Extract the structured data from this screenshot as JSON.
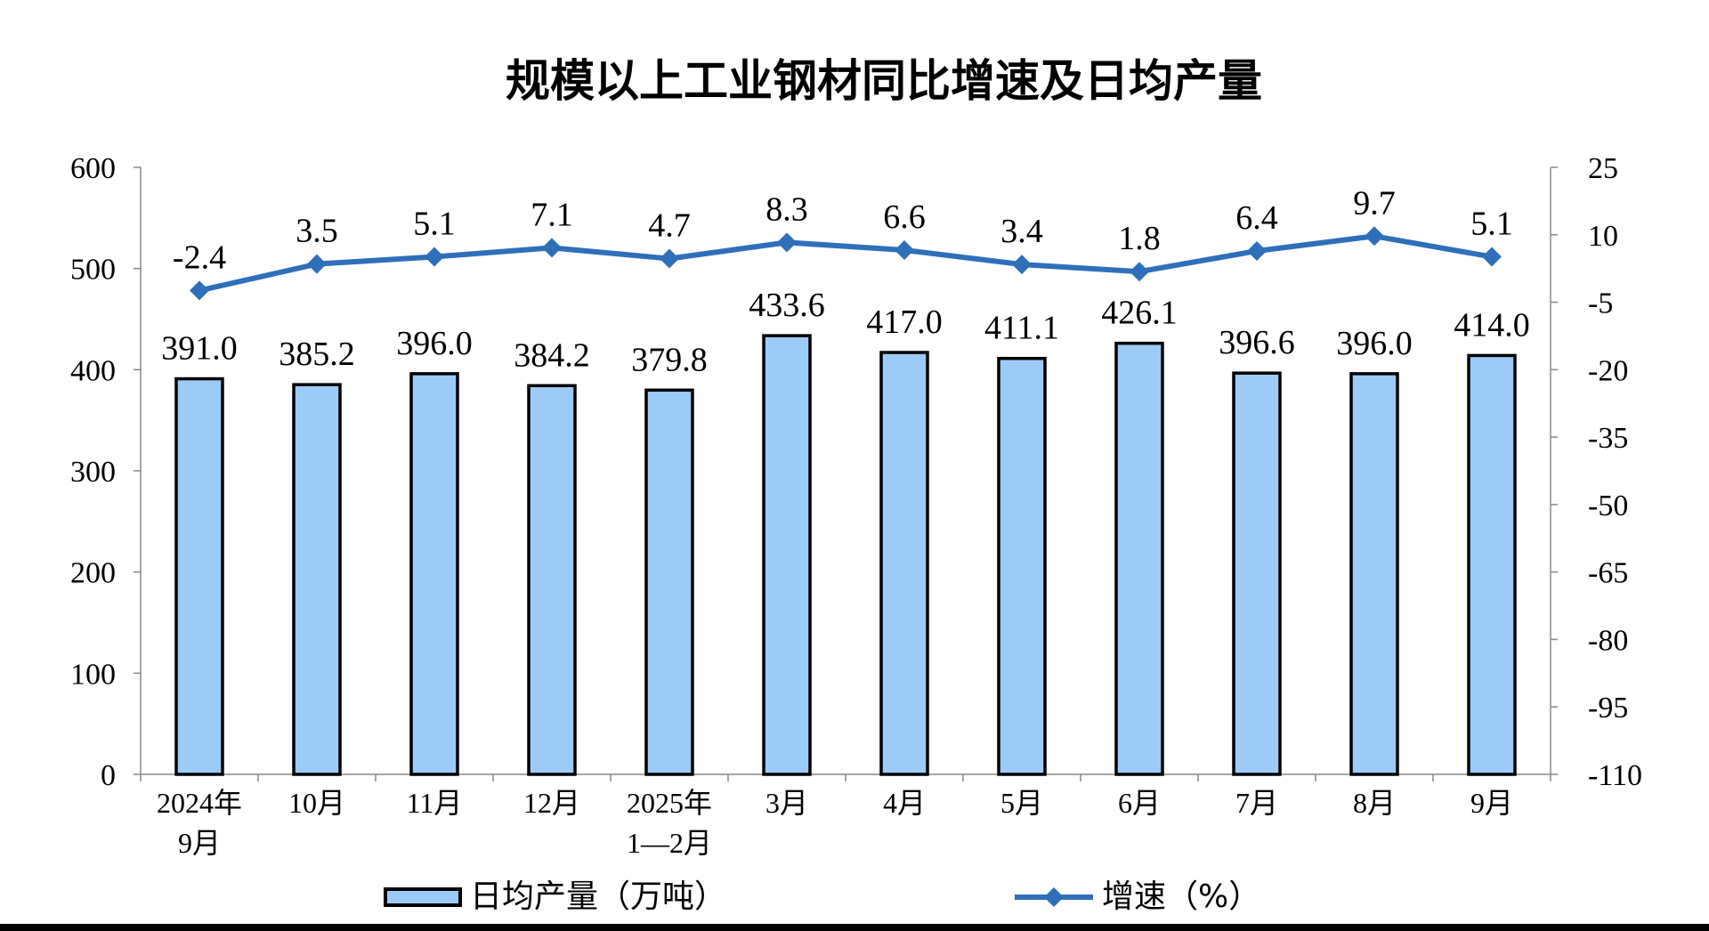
{
  "chart_data": {
    "type": "bar",
    "title": "规模以上工业钢材同比增速及日均产量",
    "categories": [
      {
        "line1": "2024年",
        "line2": "9月"
      },
      {
        "line1": "10月",
        "line2": ""
      },
      {
        "line1": "11月",
        "line2": ""
      },
      {
        "line1": "12月",
        "line2": ""
      },
      {
        "line1": "2025年",
        "line2": "1—2月"
      },
      {
        "line1": "3月",
        "line2": ""
      },
      {
        "line1": "4月",
        "line2": ""
      },
      {
        "line1": "5月",
        "line2": ""
      },
      {
        "line1": "6月",
        "line2": ""
      },
      {
        "line1": "7月",
        "line2": ""
      },
      {
        "line1": "8月",
        "line2": ""
      },
      {
        "line1": "9月",
        "line2": ""
      }
    ],
    "series": [
      {
        "name": "日均产量（万吨）",
        "type": "bar",
        "axis": "left",
        "color": "#9dcbf7",
        "values": [
          391.0,
          385.2,
          396.0,
          384.2,
          379.8,
          433.6,
          417.0,
          411.1,
          426.1,
          396.6,
          396.0,
          414.0
        ],
        "labels": [
          "391.0",
          "385.2",
          "396.0",
          "384.2",
          "379.8",
          "433.6",
          "417.0",
          "411.1",
          "426.1",
          "396.6",
          "396.0",
          "414.0"
        ]
      },
      {
        "name": "增速（%）",
        "type": "line",
        "axis": "right",
        "color": "#2f6fba",
        "values": [
          -2.4,
          3.5,
          5.1,
          7.1,
          4.7,
          8.3,
          6.6,
          3.4,
          1.8,
          6.4,
          9.7,
          5.1
        ],
        "labels": [
          "-2.4",
          "3.5",
          "5.1",
          "7.1",
          "4.7",
          "8.3",
          "6.6",
          "3.4",
          "1.8",
          "6.4",
          "9.7",
          "5.1"
        ]
      }
    ],
    "left_axis": {
      "ylim": [
        0,
        600
      ],
      "ticks": [
        0,
        100,
        200,
        300,
        400,
        500,
        600
      ],
      "tick_labels": [
        "0",
        "100",
        "200",
        "300",
        "400",
        "500",
        "600"
      ]
    },
    "right_axis": {
      "ylim": [
        -110,
        25
      ],
      "ticks": [
        -110,
        -95,
        -80,
        -65,
        -50,
        -35,
        -20,
        -5,
        10,
        25
      ],
      "tick_labels": [
        "-110",
        "-95",
        "-80",
        "-65",
        "-50",
        "-35",
        "-20",
        "-5",
        "10",
        "25"
      ]
    },
    "grid": false,
    "legend": "bottom"
  }
}
